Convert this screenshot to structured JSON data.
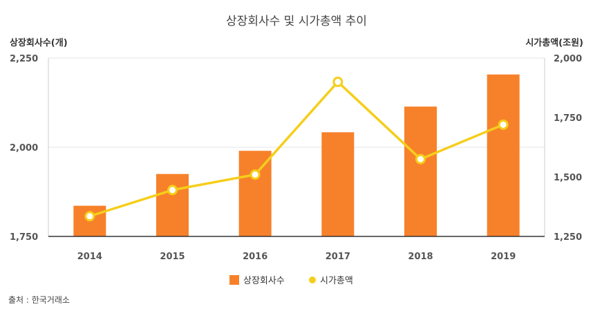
{
  "chart_data": {
    "type": "bar",
    "title": "상장회사수 및 시가총액 추이",
    "categories": [
      "2014",
      "2015",
      "2016",
      "2017",
      "2018",
      "2019"
    ],
    "series": [
      {
        "name": "상장회사수",
        "type": "bar",
        "axis": "left",
        "color": "#F7812A",
        "values": [
          1836,
          1925,
          1990,
          2042,
          2114,
          2204
        ]
      },
      {
        "name": "시가총액",
        "type": "line",
        "axis": "right",
        "color": "#F5CE1B",
        "values": [
          1335,
          1445,
          1510,
          1900,
          1575,
          1720
        ]
      }
    ],
    "ylabel_left": "상장회사수(개)",
    "ylabel_right": "시가총액(조원)",
    "ylim_left": [
      1750,
      2250
    ],
    "ylim_right": [
      1250,
      2000
    ],
    "yticks_left": [
      "1,750",
      "2,000",
      "2,250"
    ],
    "yticks_right": [
      "1,250",
      "1,500",
      "1,750",
      "2,000"
    ],
    "ytick_values_left": [
      1750,
      2000,
      2250
    ],
    "ytick_values_right": [
      1250,
      1500,
      1750,
      2000
    ],
    "grid": true,
    "legend_position": "bottom",
    "source": "출처 : 한국거래소"
  }
}
